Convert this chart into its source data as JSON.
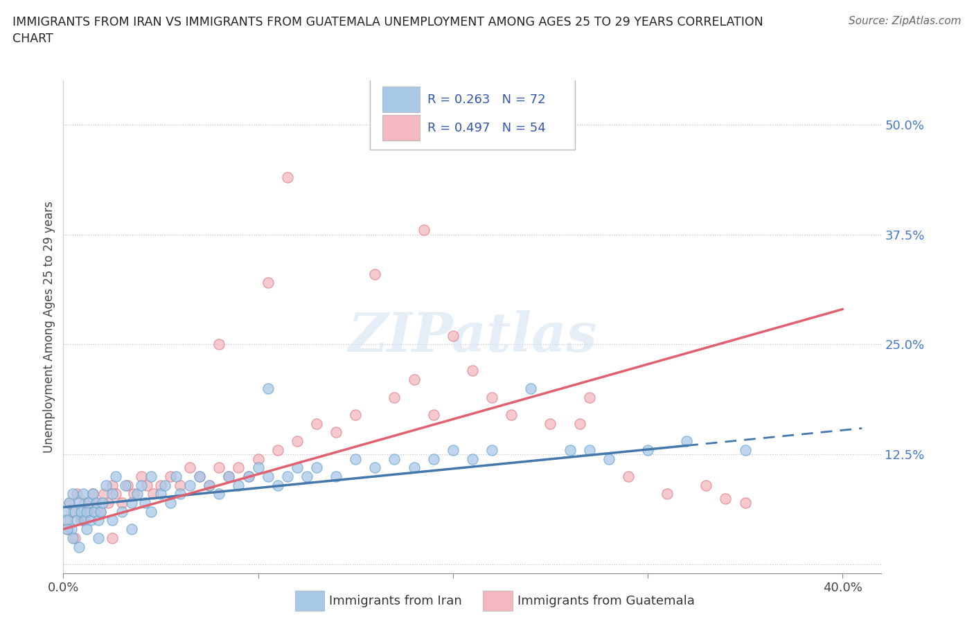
{
  "title": "IMMIGRANTS FROM IRAN VS IMMIGRANTS FROM GUATEMALA UNEMPLOYMENT AMONG AGES 25 TO 29 YEARS CORRELATION\nCHART",
  "source_text": "Source: ZipAtlas.com",
  "ylabel": "Unemployment Among Ages 25 to 29 years",
  "xlim": [
    0.0,
    0.42
  ],
  "ylim": [
    -0.01,
    0.55
  ],
  "iran_color": "#a8c8e8",
  "iran_color_edge": "#5b9ec9",
  "iran_line_color": "#4477aa",
  "guatemala_color": "#f4b8c0",
  "guatemala_color_edge": "#e07080",
  "guatemala_line_color": "#e06070",
  "iran_R": 0.263,
  "iran_N": 72,
  "guatemala_R": 0.497,
  "guatemala_N": 54,
  "watermark": "ZIPatlas",
  "background_color": "#ffffff",
  "legend_color": "#3355aa",
  "iran_x": [
    0.001,
    0.002,
    0.003,
    0.004,
    0.005,
    0.006,
    0.007,
    0.008,
    0.009,
    0.01,
    0.011,
    0.012,
    0.013,
    0.014,
    0.015,
    0.016,
    0.017,
    0.018,
    0.019,
    0.02,
    0.022,
    0.025,
    0.027,
    0.03,
    0.032,
    0.035,
    0.038,
    0.04,
    0.042,
    0.045,
    0.05,
    0.052,
    0.055,
    0.058,
    0.06,
    0.065,
    0.07,
    0.075,
    0.08,
    0.085,
    0.09,
    0.095,
    0.1,
    0.105,
    0.11,
    0.115,
    0.12,
    0.125,
    0.13,
    0.14,
    0.15,
    0.16,
    0.17,
    0.18,
    0.19,
    0.2,
    0.21,
    0.22,
    0.24,
    0.26,
    0.28,
    0.3,
    0.32,
    0.35,
    0.002,
    0.005,
    0.008,
    0.012,
    0.018,
    0.025,
    0.035,
    0.045
  ],
  "iran_y": [
    0.06,
    0.05,
    0.07,
    0.04,
    0.08,
    0.06,
    0.05,
    0.07,
    0.06,
    0.08,
    0.05,
    0.06,
    0.07,
    0.05,
    0.08,
    0.06,
    0.07,
    0.05,
    0.06,
    0.07,
    0.09,
    0.08,
    0.1,
    0.06,
    0.09,
    0.07,
    0.08,
    0.09,
    0.07,
    0.1,
    0.08,
    0.09,
    0.07,
    0.1,
    0.08,
    0.09,
    0.1,
    0.09,
    0.08,
    0.1,
    0.09,
    0.1,
    0.11,
    0.1,
    0.09,
    0.1,
    0.11,
    0.1,
    0.11,
    0.1,
    0.12,
    0.11,
    0.12,
    0.11,
    0.12,
    0.13,
    0.12,
    0.13,
    0.2,
    0.13,
    0.12,
    0.13,
    0.14,
    0.13,
    0.04,
    0.03,
    0.02,
    0.04,
    0.03,
    0.05,
    0.04,
    0.06
  ],
  "guat_x": [
    0.001,
    0.003,
    0.005,
    0.007,
    0.009,
    0.011,
    0.013,
    0.015,
    0.017,
    0.019,
    0.021,
    0.023,
    0.025,
    0.027,
    0.03,
    0.033,
    0.036,
    0.04,
    0.043,
    0.046,
    0.05,
    0.055,
    0.06,
    0.065,
    0.07,
    0.075,
    0.08,
    0.085,
    0.09,
    0.095,
    0.1,
    0.11,
    0.12,
    0.13,
    0.14,
    0.15,
    0.16,
    0.17,
    0.18,
    0.19,
    0.2,
    0.21,
    0.22,
    0.23,
    0.25,
    0.27,
    0.29,
    0.31,
    0.33,
    0.35,
    0.002,
    0.006,
    0.01,
    0.025
  ],
  "guat_y": [
    0.05,
    0.07,
    0.06,
    0.08,
    0.05,
    0.07,
    0.06,
    0.08,
    0.07,
    0.06,
    0.08,
    0.07,
    0.09,
    0.08,
    0.07,
    0.09,
    0.08,
    0.1,
    0.09,
    0.08,
    0.09,
    0.1,
    0.09,
    0.11,
    0.1,
    0.09,
    0.11,
    0.1,
    0.11,
    0.1,
    0.12,
    0.13,
    0.14,
    0.16,
    0.15,
    0.17,
    0.33,
    0.19,
    0.21,
    0.17,
    0.26,
    0.22,
    0.19,
    0.17,
    0.16,
    0.19,
    0.1,
    0.08,
    0.09,
    0.07,
    0.04,
    0.03,
    0.05,
    0.03
  ]
}
